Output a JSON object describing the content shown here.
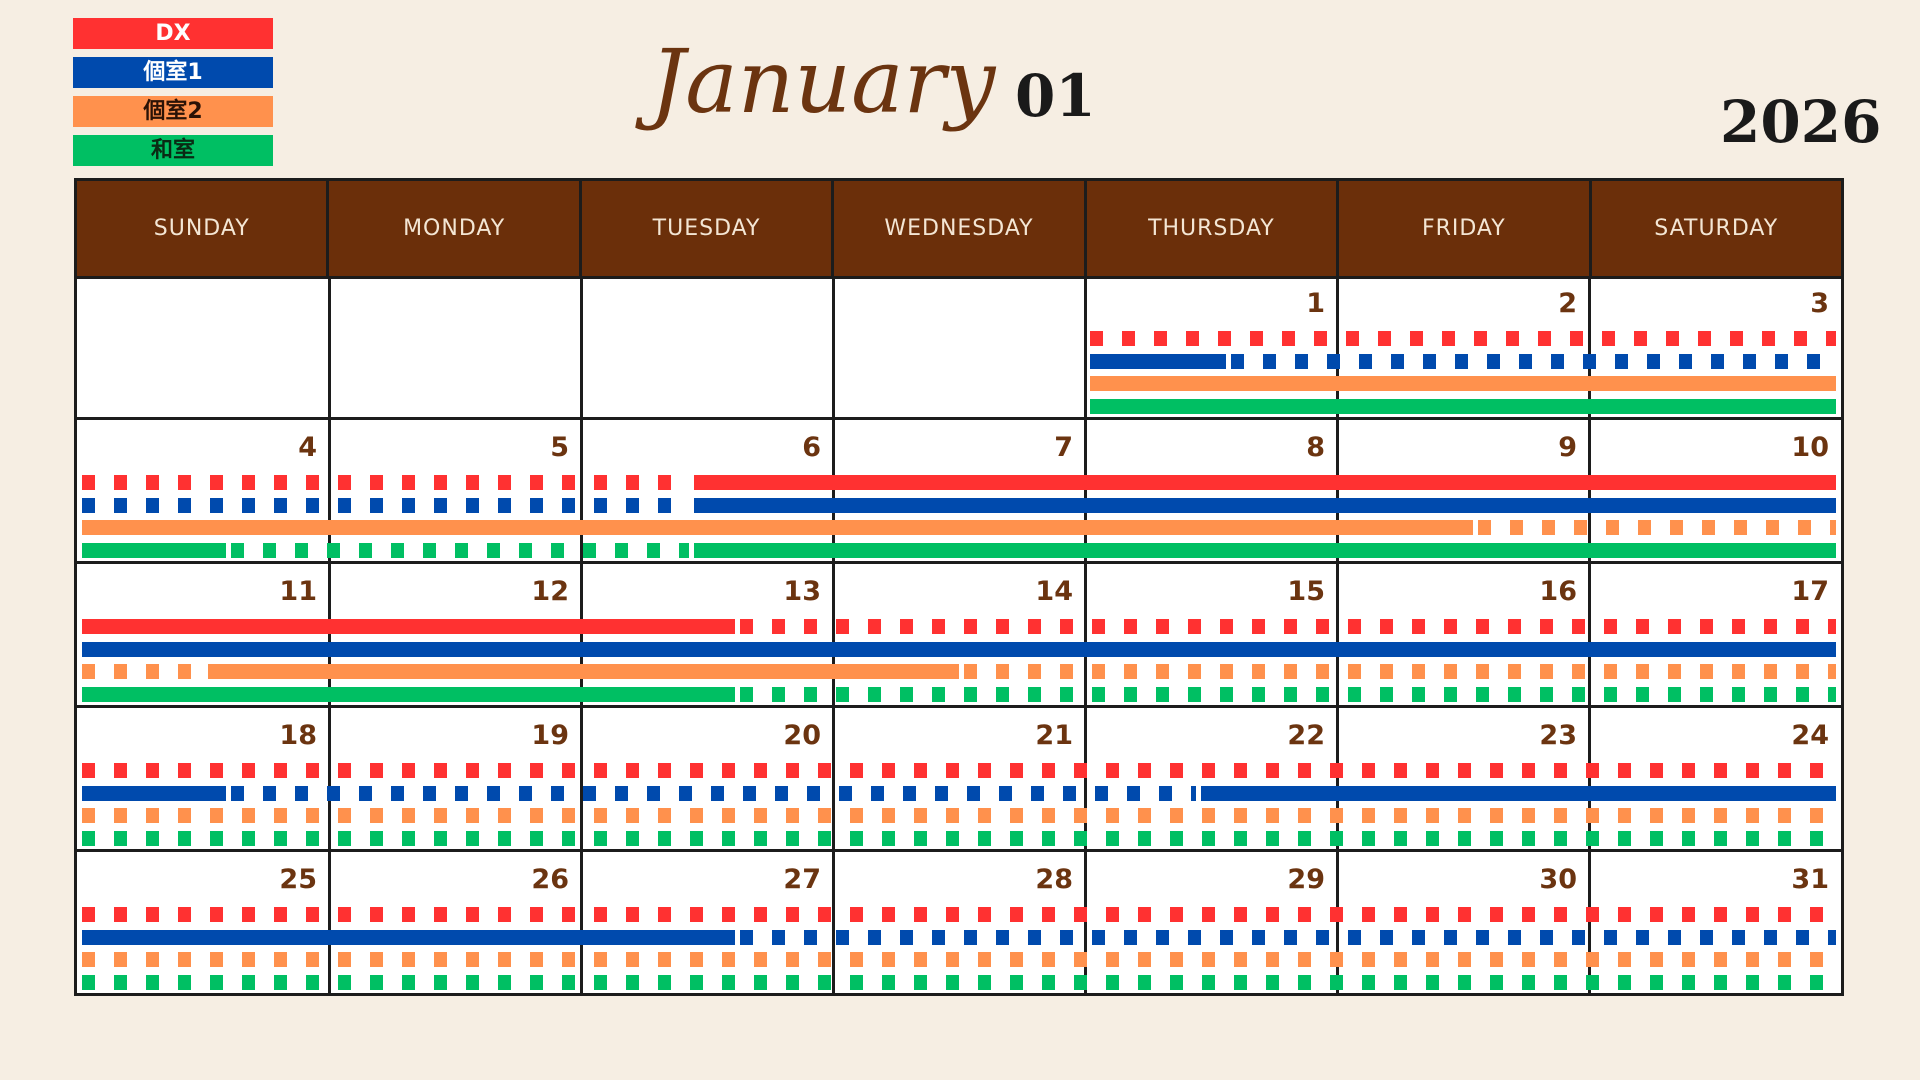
{
  "legend": [
    {
      "label": "DX",
      "color": "#ff3131",
      "text_color": "#ffffff"
    },
    {
      "label": "個室1",
      "color": "#004aad",
      "text_color": "#ffffff"
    },
    {
      "label": "個室2",
      "color": "#ff914d",
      "text_color": "#2a1206"
    },
    {
      "label": "和室",
      "color": "#00bf63",
      "text_color": "#0a2a14"
    }
  ],
  "header": {
    "month_name": "January",
    "month_number": "01",
    "year": "2026"
  },
  "weekdays": [
    "SUNDAY",
    "MONDAY",
    "TUESDAY",
    "WEDNESDAY",
    "THURSDAY",
    "FRIDAY",
    "SATURDAY"
  ],
  "weeks": [
    {
      "days": [
        null,
        null,
        null,
        null,
        1,
        2,
        3
      ],
      "first_col": 4,
      "booked": {
        "DX": [],
        "個室1": [
          [
            4,
            4.56
          ]
        ],
        "個室2": [
          [
            4,
            7
          ]
        ],
        "和室": [
          [
            4,
            7
          ]
        ]
      }
    },
    {
      "days": [
        4,
        5,
        6,
        7,
        8,
        9,
        10
      ],
      "first_col": 0,
      "booked": {
        "DX": [
          [
            2.43,
            7
          ]
        ],
        "個室1": [
          [
            2.43,
            7
          ]
        ],
        "個室2": [
          [
            0,
            5.54
          ]
        ],
        "和室": [
          [
            0,
            0.59
          ],
          [
            2.43,
            7
          ]
        ]
      }
    },
    {
      "days": [
        11,
        12,
        13,
        14,
        15,
        16,
        17
      ],
      "first_col": 0,
      "booked": {
        "DX": [
          [
            0,
            2.61
          ]
        ],
        "個室1": [
          [
            0,
            7
          ]
        ],
        "個室2": [
          [
            0.5,
            3.5
          ]
        ],
        "和室": [
          [
            0,
            2.61
          ]
        ]
      }
    },
    {
      "days": [
        18,
        19,
        20,
        21,
        22,
        23,
        24
      ],
      "first_col": 0,
      "booked": {
        "DX": [],
        "個室1": [
          [
            0,
            0.59
          ],
          [
            4.44,
            7
          ]
        ],
        "個室2": [],
        "和室": []
      }
    },
    {
      "days": [
        25,
        26,
        27,
        28,
        29,
        30,
        31
      ],
      "first_col": 0,
      "booked": {
        "DX": [],
        "個室1": [
          [
            0,
            2.61
          ]
        ],
        "個室2": [],
        "和室": []
      }
    }
  ]
}
